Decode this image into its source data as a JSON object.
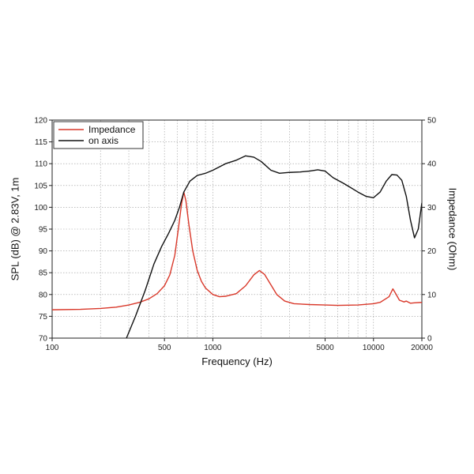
{
  "chart_data": {
    "type": "line",
    "xlabel": "Frequency (Hz)",
    "ylabel": "SPL (dB) @ 2.83V, 1m",
    "y2label": "Impedance (Ohm)",
    "xscale": "log",
    "xlim": [
      100,
      20000
    ],
    "ylim": [
      70,
      120
    ],
    "y2lim": [
      0,
      50
    ],
    "grid": true,
    "legend_position": "top-left",
    "x_ticks": [
      100,
      500,
      1000,
      5000,
      10000,
      20000
    ],
    "x_tick_labels": [
      "100",
      "500",
      "1000",
      "5000",
      "10000",
      "20000"
    ],
    "y_ticks": [
      70,
      75,
      80,
      85,
      90,
      95,
      100,
      105,
      110,
      115,
      120
    ],
    "y_tick_labels": [
      "70",
      "75",
      "80",
      "85",
      "90",
      "95",
      "100",
      "105",
      "110",
      "115",
      "120"
    ],
    "y2_ticks": [
      0,
      10,
      20,
      30,
      40,
      50
    ],
    "y2_tick_labels": [
      "0",
      "10",
      "20",
      "30",
      "40",
      "50"
    ],
    "series": [
      {
        "name": "Impedance",
        "color": "#d9382a",
        "axis": "y2",
        "points": [
          [
            100,
            6.5
          ],
          [
            150,
            6.6
          ],
          [
            200,
            6.8
          ],
          [
            250,
            7.1
          ],
          [
            300,
            7.6
          ],
          [
            350,
            8.2
          ],
          [
            400,
            9.0
          ],
          [
            450,
            10.2
          ],
          [
            500,
            12.0
          ],
          [
            540,
            14.5
          ],
          [
            580,
            19.0
          ],
          [
            610,
            25.0
          ],
          [
            640,
            31.0
          ],
          [
            660,
            33.5
          ],
          [
            680,
            31.5
          ],
          [
            710,
            26.0
          ],
          [
            750,
            20.0
          ],
          [
            800,
            15.5
          ],
          [
            850,
            13.0
          ],
          [
            900,
            11.5
          ],
          [
            1000,
            10.0
          ],
          [
            1100,
            9.5
          ],
          [
            1200,
            9.6
          ],
          [
            1400,
            10.2
          ],
          [
            1600,
            12.0
          ],
          [
            1800,
            14.5
          ],
          [
            1950,
            15.5
          ],
          [
            2100,
            14.6
          ],
          [
            2300,
            12.2
          ],
          [
            2500,
            10.0
          ],
          [
            2800,
            8.5
          ],
          [
            3200,
            7.9
          ],
          [
            4000,
            7.7
          ],
          [
            5000,
            7.6
          ],
          [
            6000,
            7.5
          ],
          [
            8000,
            7.6
          ],
          [
            10000,
            7.9
          ],
          [
            11000,
            8.2
          ],
          [
            12500,
            9.5
          ],
          [
            13200,
            11.3
          ],
          [
            13700,
            10.3
          ],
          [
            14500,
            8.7
          ],
          [
            15500,
            8.3
          ],
          [
            16000,
            8.5
          ],
          [
            17000,
            8.0
          ],
          [
            18000,
            8.1
          ],
          [
            20000,
            8.2
          ]
        ]
      },
      {
        "name": "on axis",
        "color": "#111111",
        "axis": "y",
        "points": [
          [
            290,
            70
          ],
          [
            330,
            75
          ],
          [
            380,
            81
          ],
          [
            430,
            87
          ],
          [
            480,
            91
          ],
          [
            530,
            94
          ],
          [
            580,
            97
          ],
          [
            620,
            100
          ],
          [
            660,
            103.5
          ],
          [
            720,
            106
          ],
          [
            800,
            107.3
          ],
          [
            900,
            107.8
          ],
          [
            1000,
            108.5
          ],
          [
            1200,
            110
          ],
          [
            1400,
            110.8
          ],
          [
            1600,
            111.8
          ],
          [
            1800,
            111.5
          ],
          [
            2000,
            110.5
          ],
          [
            2300,
            108.5
          ],
          [
            2600,
            107.8
          ],
          [
            3000,
            108
          ],
          [
            3500,
            108.1
          ],
          [
            4000,
            108.3
          ],
          [
            4500,
            108.6
          ],
          [
            5000,
            108.3
          ],
          [
            5600,
            106.8
          ],
          [
            6500,
            105.5
          ],
          [
            7000,
            104.8
          ],
          [
            8000,
            103.5
          ],
          [
            9000,
            102.5
          ],
          [
            10000,
            102.2
          ],
          [
            11000,
            103.5
          ],
          [
            12000,
            106
          ],
          [
            13000,
            107.5
          ],
          [
            14000,
            107.4
          ],
          [
            15000,
            106.2
          ],
          [
            16000,
            102.5
          ],
          [
            17000,
            97
          ],
          [
            18000,
            93
          ],
          [
            19000,
            95
          ],
          [
            20000,
            101
          ]
        ]
      }
    ]
  }
}
